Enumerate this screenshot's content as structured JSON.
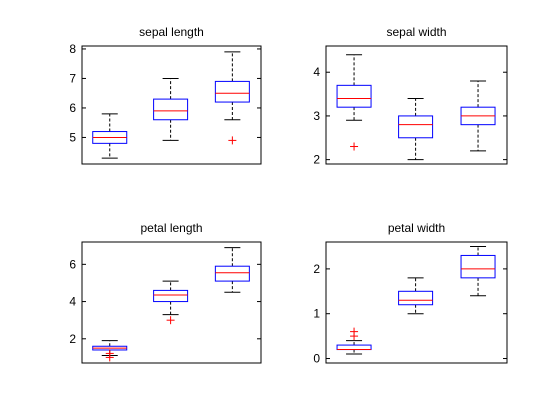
{
  "colors": {
    "box": "#0000ff",
    "median": "#ff0000",
    "outlier": "#ff0000",
    "whisker": "#000000",
    "axis": "#000000"
  },
  "chart_data": [
    {
      "type": "box",
      "title": "sepal length",
      "xlabel": "",
      "ylabel": "",
      "ylim": [
        4.1,
        8.1
      ],
      "yticks": [
        5,
        6,
        7,
        8
      ],
      "yticklabels": [
        "5",
        "6",
        "7",
        "8"
      ],
      "grid": false,
      "groups": [
        {
          "whisker_low": 4.3,
          "q1": 4.8,
          "median": 5.0,
          "q3": 5.2,
          "whisker_high": 5.8,
          "outliers": []
        },
        {
          "whisker_low": 4.9,
          "q1": 5.6,
          "median": 5.9,
          "q3": 6.3,
          "whisker_high": 7.0,
          "outliers": []
        },
        {
          "whisker_low": 5.6,
          "q1": 6.2,
          "median": 6.5,
          "q3": 6.9,
          "whisker_high": 7.9,
          "outliers": [
            4.9
          ]
        }
      ]
    },
    {
      "type": "box",
      "title": "sepal width",
      "xlabel": "",
      "ylabel": "",
      "ylim": [
        1.9,
        4.6
      ],
      "yticks": [
        2,
        3,
        4
      ],
      "yticklabels": [
        "2",
        "3",
        "4"
      ],
      "grid": false,
      "groups": [
        {
          "whisker_low": 2.9,
          "q1": 3.2,
          "median": 3.4,
          "q3": 3.7,
          "whisker_high": 4.4,
          "outliers": [
            2.3
          ]
        },
        {
          "whisker_low": 2.0,
          "q1": 2.5,
          "median": 2.8,
          "q3": 3.0,
          "whisker_high": 3.4,
          "outliers": []
        },
        {
          "whisker_low": 2.2,
          "q1": 2.8,
          "median": 3.0,
          "q3": 3.2,
          "whisker_high": 3.8,
          "outliers": []
        }
      ]
    },
    {
      "type": "box",
      "title": "petal length",
      "xlabel": "",
      "ylabel": "",
      "ylim": [
        0.7,
        7.2
      ],
      "yticks": [
        2,
        4,
        6
      ],
      "yticklabels": [
        "2",
        "4",
        "6"
      ],
      "grid": false,
      "groups": [
        {
          "whisker_low": 1.1,
          "q1": 1.4,
          "median": 1.5,
          "q3": 1.6,
          "whisker_high": 1.9,
          "outliers": [
            1.0,
            1.0
          ]
        },
        {
          "whisker_low": 3.3,
          "q1": 4.0,
          "median": 4.35,
          "q3": 4.6,
          "whisker_high": 5.1,
          "outliers": [
            3.0
          ]
        },
        {
          "whisker_low": 4.5,
          "q1": 5.1,
          "median": 5.55,
          "q3": 5.9,
          "whisker_high": 6.9,
          "outliers": []
        }
      ]
    },
    {
      "type": "box",
      "title": "petal width",
      "xlabel": "",
      "ylabel": "",
      "ylim": [
        -0.1,
        2.6
      ],
      "yticks": [
        0,
        1,
        2
      ],
      "yticklabels": [
        "0",
        "1",
        "2"
      ],
      "grid": false,
      "groups": [
        {
          "whisker_low": 0.1,
          "q1": 0.2,
          "median": 0.2,
          "q3": 0.3,
          "whisker_high": 0.4,
          "outliers": [
            0.5,
            0.6
          ]
        },
        {
          "whisker_low": 1.0,
          "q1": 1.2,
          "median": 1.3,
          "q3": 1.5,
          "whisker_high": 1.8,
          "outliers": []
        },
        {
          "whisker_low": 1.4,
          "q1": 1.8,
          "median": 2.0,
          "q3": 2.3,
          "whisker_high": 2.5,
          "outliers": []
        }
      ]
    }
  ]
}
